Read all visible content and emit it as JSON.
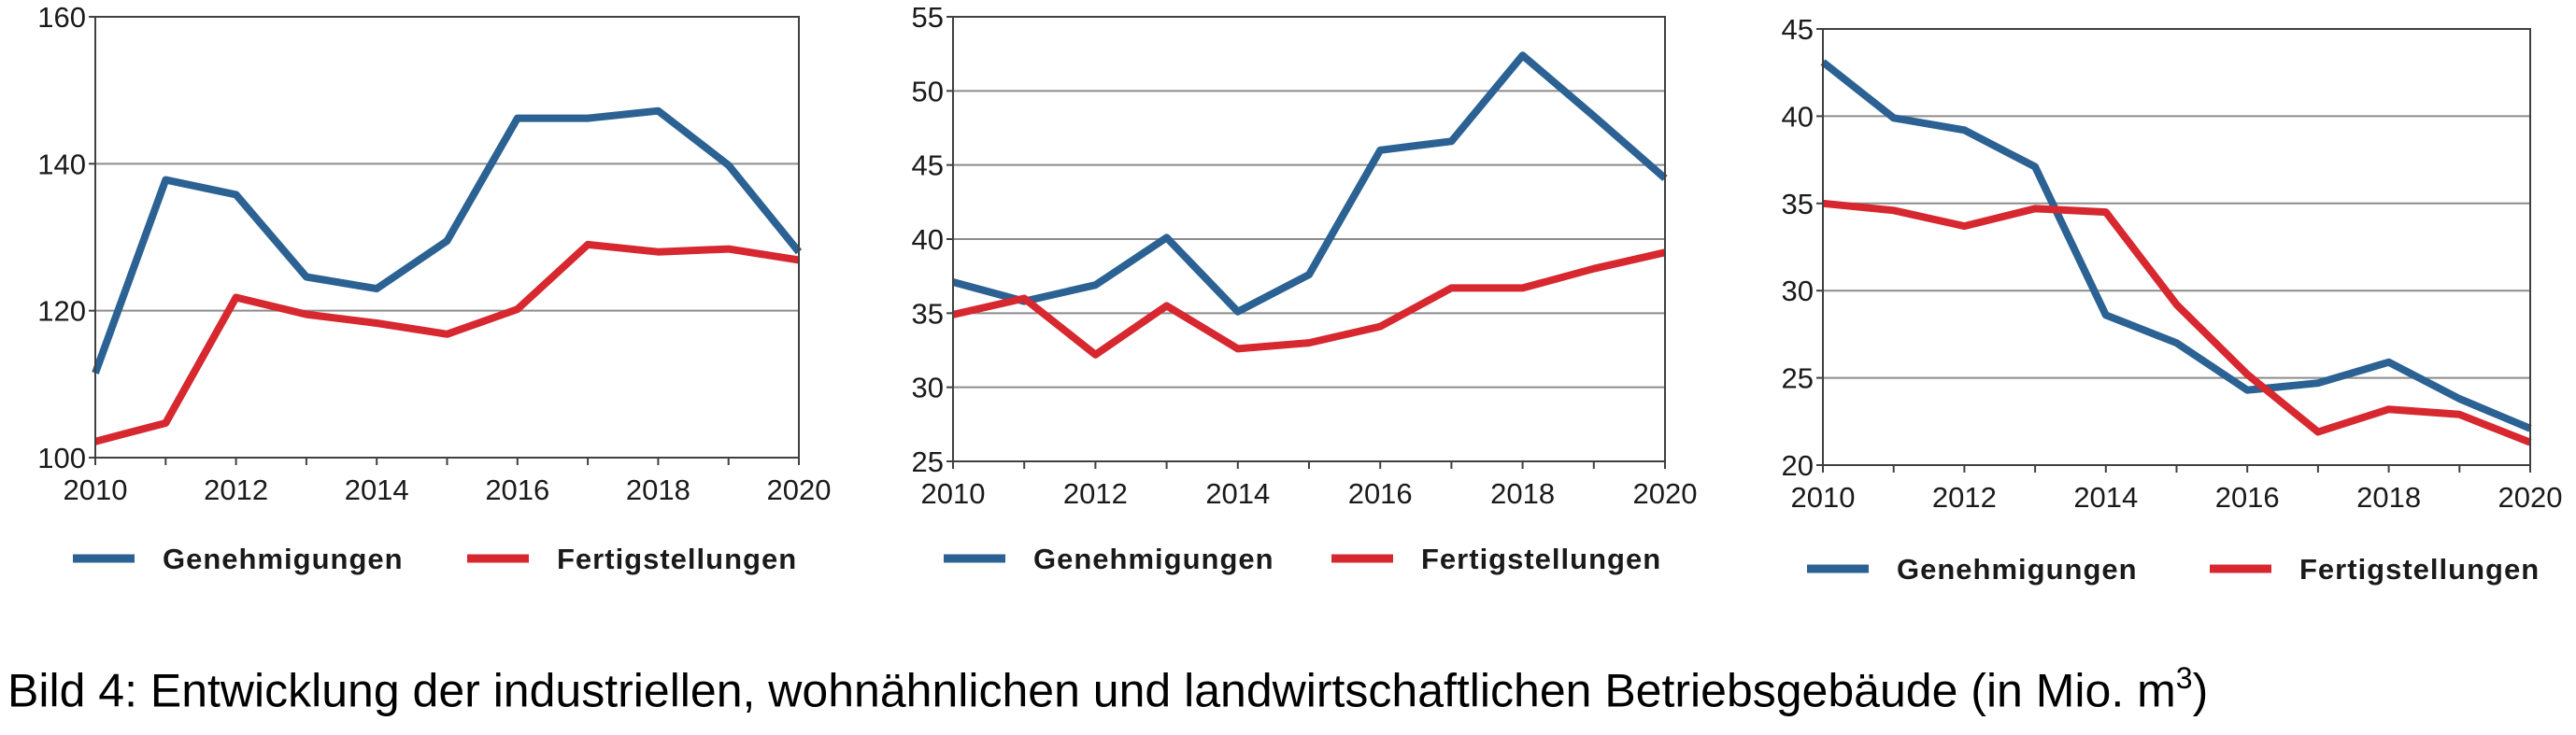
{
  "colors": {
    "series_1": "#2b6293",
    "series_2": "#d7272f",
    "grid": "#8c8c8c",
    "axis": "#404040"
  },
  "caption": {
    "text": "Bild 4: Entwicklung der industriellen, wohnähnlichen und landwirtschaftlichen Betriebsgebäude (in Mio. m",
    "sup": "3",
    "close": ")"
  },
  "chart_data": [
    {
      "type": "line",
      "x": [
        2010,
        2011,
        2012,
        2013,
        2014,
        2015,
        2016,
        2017,
        2018,
        2019,
        2020
      ],
      "xticks": [
        "2010",
        "2012",
        "2014",
        "2016",
        "2018",
        "2020"
      ],
      "yticks": [
        "100",
        "120",
        "140",
        "160"
      ],
      "ylim": [
        100,
        160
      ],
      "grid": true,
      "legend": "bottom",
      "series": [
        {
          "name": "Genehmigungen",
          "values": [
            111.5,
            137.8,
            135.8,
            124.6,
            123,
            129.5,
            146.2,
            146.2,
            147.2,
            139.8,
            128
          ]
        },
        {
          "name": "Fertigstellungen",
          "values": [
            102.2,
            104.7,
            121.8,
            119.5,
            118.3,
            116.8,
            120.2,
            129,
            128,
            128.4,
            126.9
          ]
        }
      ]
    },
    {
      "type": "line",
      "x": [
        2010,
        2011,
        2012,
        2013,
        2014,
        2015,
        2016,
        2017,
        2018,
        2019,
        2020
      ],
      "xticks": [
        "2010",
        "2012",
        "2014",
        "2016",
        "2018",
        "2020"
      ],
      "yticks": [
        "25",
        "30",
        "35",
        "40",
        "45",
        "50",
        "55"
      ],
      "ylim": [
        25,
        55
      ],
      "grid": true,
      "legend": "bottom",
      "series": [
        {
          "name": "Genehmigungen",
          "values": [
            37.1,
            35.8,
            36.9,
            40.1,
            35.1,
            37.6,
            46,
            46.6,
            52.4,
            48.3,
            44.1
          ]
        },
        {
          "name": "Fertigstellungen",
          "values": [
            34.9,
            36,
            32.2,
            35.5,
            32.6,
            33,
            34.1,
            36.7,
            36.7,
            38,
            39.1
          ]
        }
      ]
    },
    {
      "type": "line",
      "x": [
        2010,
        2011,
        2012,
        2013,
        2014,
        2015,
        2016,
        2017,
        2018,
        2019,
        2020
      ],
      "xticks": [
        "2010",
        "2012",
        "2014",
        "2016",
        "2018",
        "2020"
      ],
      "yticks": [
        "20",
        "25",
        "30",
        "35",
        "40",
        "45"
      ],
      "ylim": [
        20,
        45
      ],
      "grid": true,
      "legend": "bottom",
      "series": [
        {
          "name": "Genehmigungen",
          "values": [
            43.1,
            39.9,
            39.2,
            37.1,
            28.6,
            27,
            24.3,
            24.7,
            25.9,
            23.8,
            22.1
          ]
        },
        {
          "name": "Fertigstellungen",
          "values": [
            35,
            34.6,
            33.7,
            34.7,
            34.5,
            29.2,
            25.2,
            21.9,
            23.2,
            22.9,
            21.3
          ]
        }
      ]
    }
  ]
}
